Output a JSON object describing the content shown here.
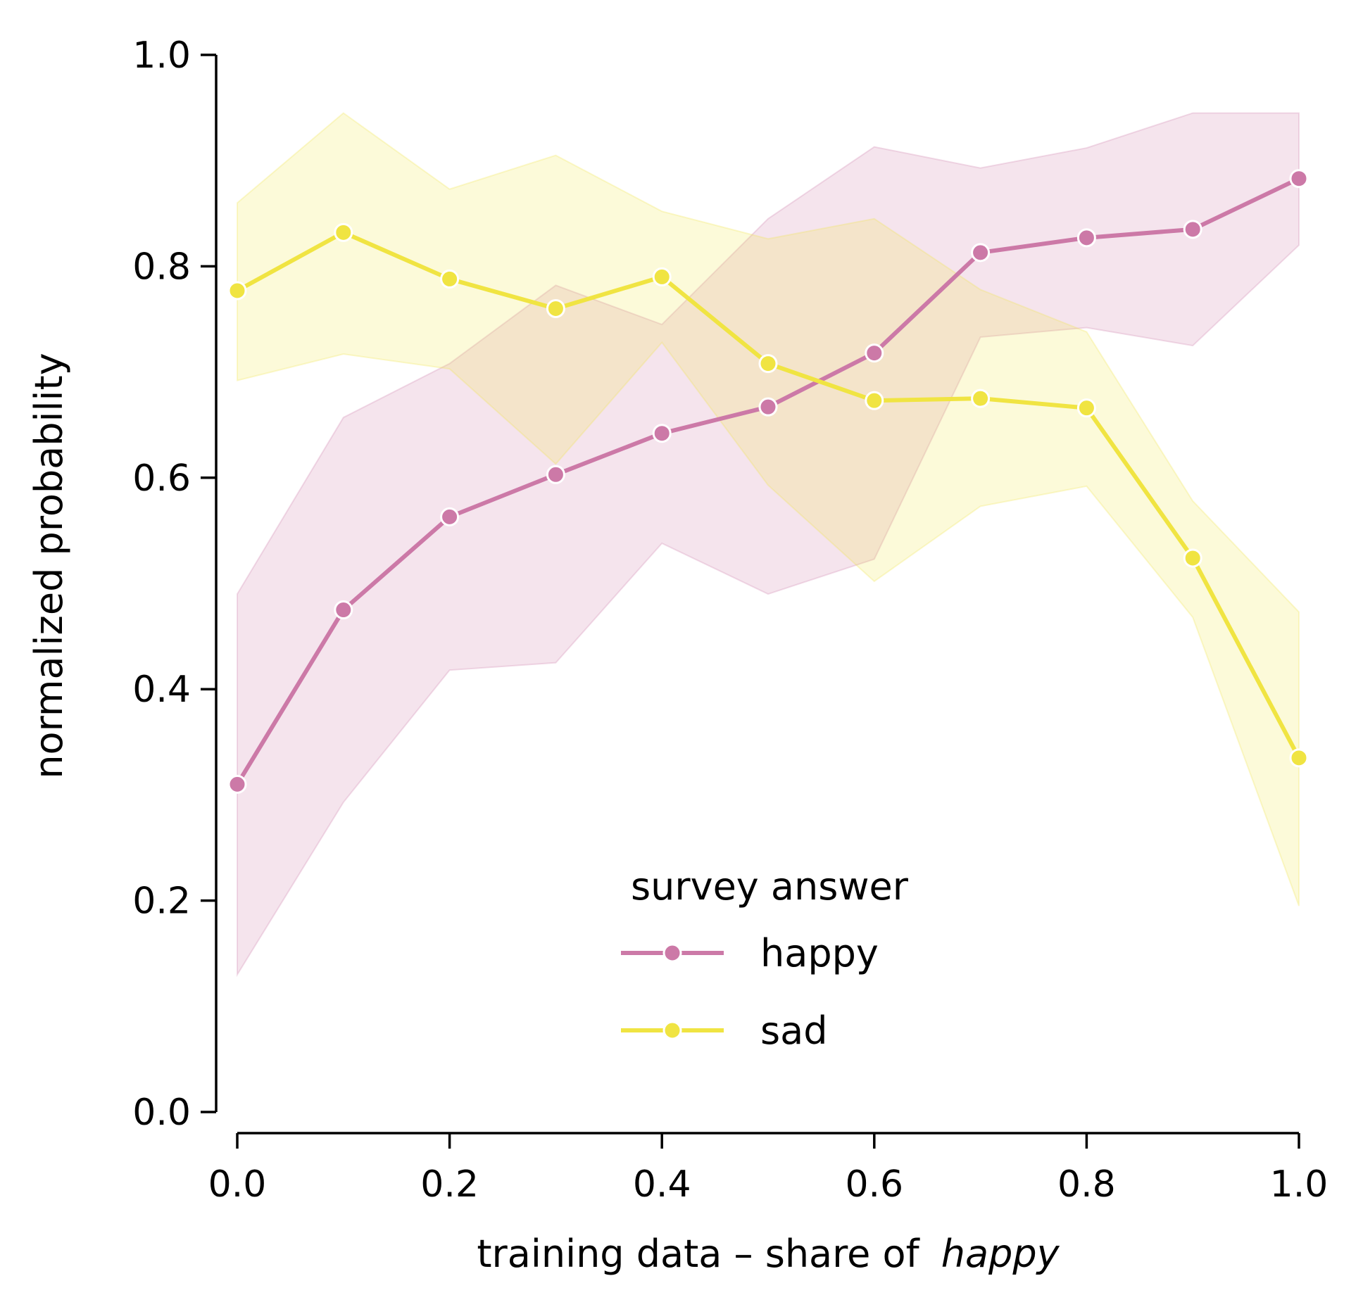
{
  "chart_data": {
    "type": "line",
    "xlabel": "training data – share of",
    "xlabel_emphasis": "happy",
    "ylabel": "normalized probability",
    "xlim": [
      0.0,
      1.0
    ],
    "ylim": [
      0.0,
      1.0
    ],
    "x_ticks": [
      "0.0",
      "0.2",
      "0.4",
      "0.6",
      "0.8",
      "1.0"
    ],
    "y_ticks": [
      "0.0",
      "0.2",
      "0.4",
      "0.6",
      "0.8",
      "1.0"
    ],
    "grid": false,
    "legend": {
      "title": "survey answer",
      "placement": "lower-center"
    },
    "x": [
      0.0,
      0.1,
      0.2,
      0.3,
      0.4,
      0.5,
      0.6,
      0.7,
      0.8,
      0.9,
      1.0
    ],
    "series": [
      {
        "name": "happy",
        "color": "#cc79a7",
        "values": [
          0.31,
          0.475,
          0.563,
          0.603,
          0.642,
          0.667,
          0.718,
          0.813,
          0.827,
          0.835,
          0.883
        ],
        "ci_low": [
          0.13,
          0.293,
          0.418,
          0.425,
          0.538,
          0.49,
          0.523,
          0.733,
          0.742,
          0.725,
          0.82
        ],
        "ci_high": [
          0.49,
          0.657,
          0.708,
          0.782,
          0.745,
          0.845,
          0.913,
          0.893,
          0.912,
          0.945,
          0.945
        ]
      },
      {
        "name": "sad",
        "color": "#f0e442",
        "values": [
          0.777,
          0.832,
          0.788,
          0.76,
          0.79,
          0.708,
          0.673,
          0.675,
          0.666,
          0.524,
          0.335
        ],
        "ci_low": [
          0.692,
          0.717,
          0.703,
          0.613,
          0.728,
          0.593,
          0.502,
          0.573,
          0.592,
          0.468,
          0.195
        ],
        "ci_high": [
          0.86,
          0.945,
          0.873,
          0.905,
          0.852,
          0.826,
          0.845,
          0.778,
          0.738,
          0.578,
          0.473
        ]
      }
    ]
  }
}
